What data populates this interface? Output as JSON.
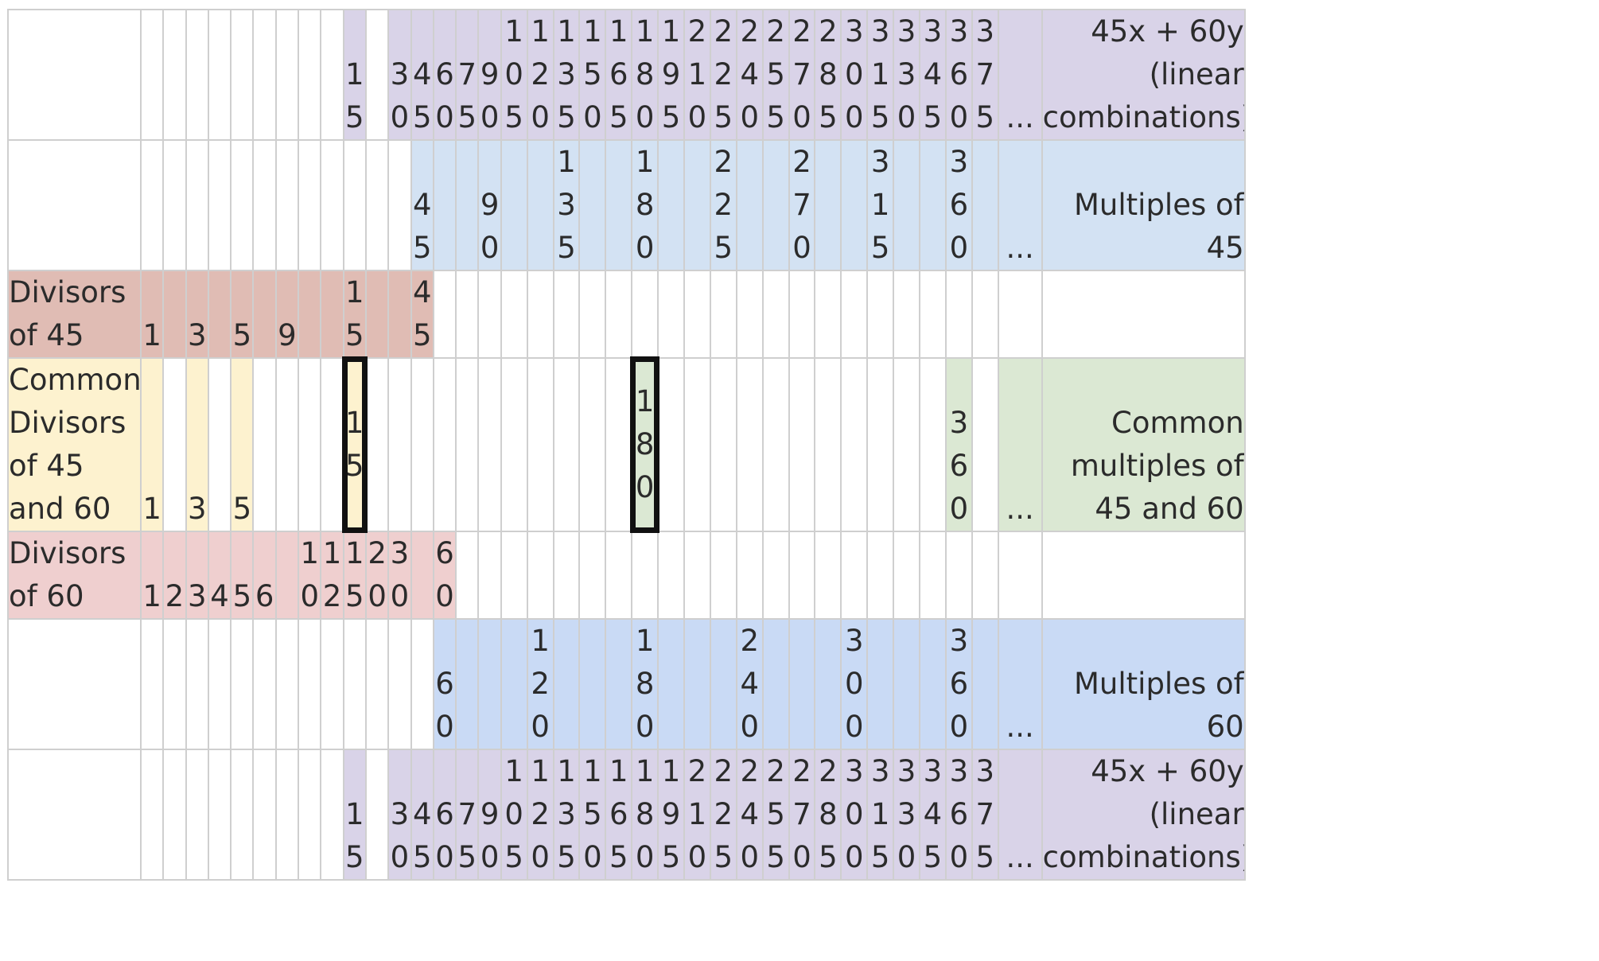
{
  "columns": [
    "1",
    "2",
    "3",
    "4",
    "5",
    "6",
    "9",
    "10",
    "12",
    "15",
    "20",
    "30",
    "45",
    "60",
    "75",
    "90",
    "105",
    "120",
    "135",
    "150",
    "165",
    "180",
    "195",
    "210",
    "225",
    "240",
    "255",
    "270",
    "285",
    "300",
    "315",
    "330",
    "345",
    "360",
    "375"
  ],
  "ellipsis": "...",
  "colors": {
    "linear": "#d9d3e8",
    "mult45": "#d3e2f3",
    "div45": "#e0bcb4",
    "common_div": "#fdf2cf",
    "common_mult": "#dbe8d3",
    "div60": "#efcfcf",
    "mult60": "#c9daf5",
    "white": "#ffffff"
  },
  "rows": [
    {
      "name": "linear-combinations-top",
      "label": "",
      "right_label": "45x + 60y (linear combinations)",
      "color": "linear",
      "values": [
        "15",
        "30",
        "45",
        "60",
        "75",
        "90",
        "105",
        "120",
        "135",
        "150",
        "165",
        "180",
        "195",
        "210",
        "225",
        "240",
        "255",
        "270",
        "285",
        "300",
        "315",
        "330",
        "345",
        "360",
        "375"
      ],
      "show_ellipsis": true,
      "height": 143
    },
    {
      "name": "multiples-of-45",
      "label": "",
      "right_label": "Multiples of 45",
      "color": "mult45",
      "values": [
        "45",
        "90",
        "135",
        "180",
        "225",
        "270",
        "315",
        "360"
      ],
      "fill_from": "45",
      "show_ellipsis": true,
      "height": 143
    },
    {
      "name": "divisors-of-45",
      "label": "Divisors of 45",
      "right_label": "",
      "color": "div45",
      "values": [
        "1",
        "3",
        "5",
        "9",
        "15",
        "45"
      ],
      "fill_label": true,
      "fill_range": [
        "1",
        "45"
      ],
      "show_ellipsis": false,
      "height": 102
    },
    {
      "name": "common-divisors-and-multiples",
      "label": "Common Divisors of 45 and 60",
      "right_label": "Common multiples of 45 and 60",
      "color": "common_div",
      "values": [
        "1",
        "3",
        "5",
        "15",
        "180",
        "360"
      ],
      "highlight_values": {
        "1": "common_div",
        "3": "common_div",
        "5": "common_div",
        "15": "common_div",
        "180": "common_mult",
        "360": "common_mult"
      },
      "boxed": [
        "15",
        "180"
      ],
      "label_color": "common_div",
      "right_color": "common_mult",
      "ellipsis_color": "common_mult",
      "show_ellipsis": true,
      "height": 147
    },
    {
      "name": "divisors-of-60",
      "label": "Divisors of 60",
      "right_label": "",
      "color": "div60",
      "values": [
        "1",
        "2",
        "3",
        "4",
        "5",
        "6",
        "10",
        "12",
        "15",
        "20",
        "30",
        "60"
      ],
      "fill_label": true,
      "fill_range": [
        "1",
        "60"
      ],
      "show_ellipsis": false,
      "height": 102
    },
    {
      "name": "multiples-of-60",
      "label": "",
      "right_label": "Multiples of 60",
      "color": "mult60",
      "values": [
        "60",
        "120",
        "180",
        "240",
        "300",
        "360"
      ],
      "fill_from": "60",
      "show_ellipsis": true,
      "height": 143
    },
    {
      "name": "linear-combinations-bottom",
      "label": "",
      "right_label": "45x + 60y (linear combinations)",
      "color": "linear",
      "values": [
        "15",
        "30",
        "45",
        "60",
        "75",
        "90",
        "105",
        "120",
        "135",
        "150",
        "165",
        "180",
        "195",
        "210",
        "225",
        "240",
        "255",
        "270",
        "285",
        "300",
        "315",
        "330",
        "345",
        "360",
        "375"
      ],
      "show_ellipsis": true,
      "height": 143
    }
  ]
}
